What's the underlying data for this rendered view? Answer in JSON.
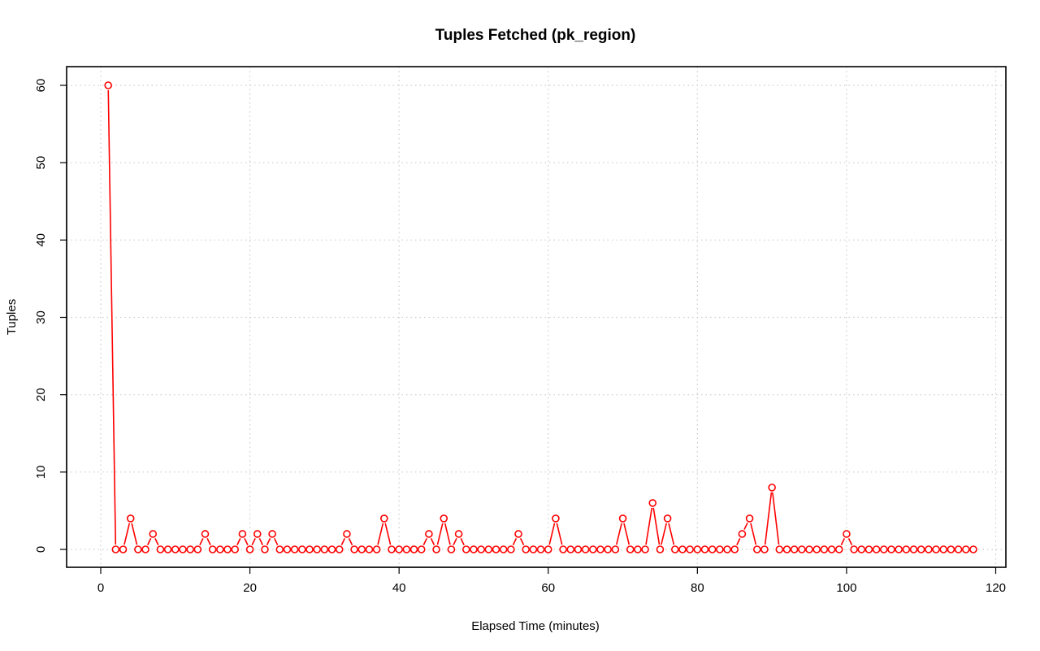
{
  "chart_data": {
    "type": "line",
    "title": "Tuples Fetched (pk_region)",
    "xlabel": "Elapsed Time (minutes)",
    "ylabel": "Tuples",
    "xlim": [
      0,
      120
    ],
    "ylim": [
      0,
      60
    ],
    "xticks": [
      0,
      20,
      40,
      60,
      80,
      100,
      120
    ],
    "yticks": [
      0,
      10,
      20,
      30,
      40,
      50,
      60
    ],
    "grid": true,
    "series_color": "#ff0000",
    "grid_color": "#cccccc",
    "x": [
      1,
      2,
      3,
      4,
      5,
      6,
      7,
      8,
      9,
      10,
      11,
      12,
      13,
      14,
      15,
      16,
      17,
      18,
      19,
      20,
      21,
      22,
      23,
      24,
      25,
      26,
      27,
      28,
      29,
      30,
      31,
      32,
      33,
      34,
      35,
      36,
      37,
      38,
      39,
      40,
      41,
      42,
      43,
      44,
      45,
      46,
      47,
      48,
      49,
      50,
      51,
      52,
      53,
      54,
      55,
      56,
      57,
      58,
      59,
      60,
      61,
      62,
      63,
      64,
      65,
      66,
      67,
      68,
      69,
      70,
      71,
      72,
      73,
      74,
      75,
      76,
      77,
      78,
      79,
      80,
      81,
      82,
      83,
      84,
      85,
      86,
      87,
      88,
      89,
      90,
      91,
      92,
      93,
      94,
      95,
      96,
      97,
      98,
      99,
      100,
      101,
      102,
      103,
      104,
      105,
      106,
      107,
      108,
      109,
      110,
      111,
      112,
      113,
      114,
      115,
      116,
      117
    ],
    "y": [
      60,
      0,
      0,
      4,
      0,
      0,
      2,
      0,
      0,
      0,
      0,
      0,
      0,
      2,
      0,
      0,
      0,
      0,
      2,
      0,
      2,
      0,
      2,
      0,
      0,
      0,
      0,
      0,
      0,
      0,
      0,
      0,
      2,
      0,
      0,
      0,
      0,
      4,
      0,
      0,
      0,
      0,
      0,
      2,
      0,
      4,
      0,
      2,
      0,
      0,
      0,
      0,
      0,
      0,
      0,
      2,
      0,
      0,
      0,
      0,
      4,
      0,
      0,
      0,
      0,
      0,
      0,
      0,
      0,
      4,
      0,
      0,
      0,
      6,
      0,
      4,
      0,
      0,
      0,
      0,
      0,
      0,
      0,
      0,
      0,
      2,
      4,
      0,
      0,
      8,
      0,
      0,
      0,
      0,
      0,
      0,
      0,
      0,
      0,
      2,
      0,
      0,
      0,
      0,
      0,
      0,
      0,
      0,
      0,
      0,
      0,
      0,
      0,
      0,
      0,
      0,
      0
    ]
  }
}
